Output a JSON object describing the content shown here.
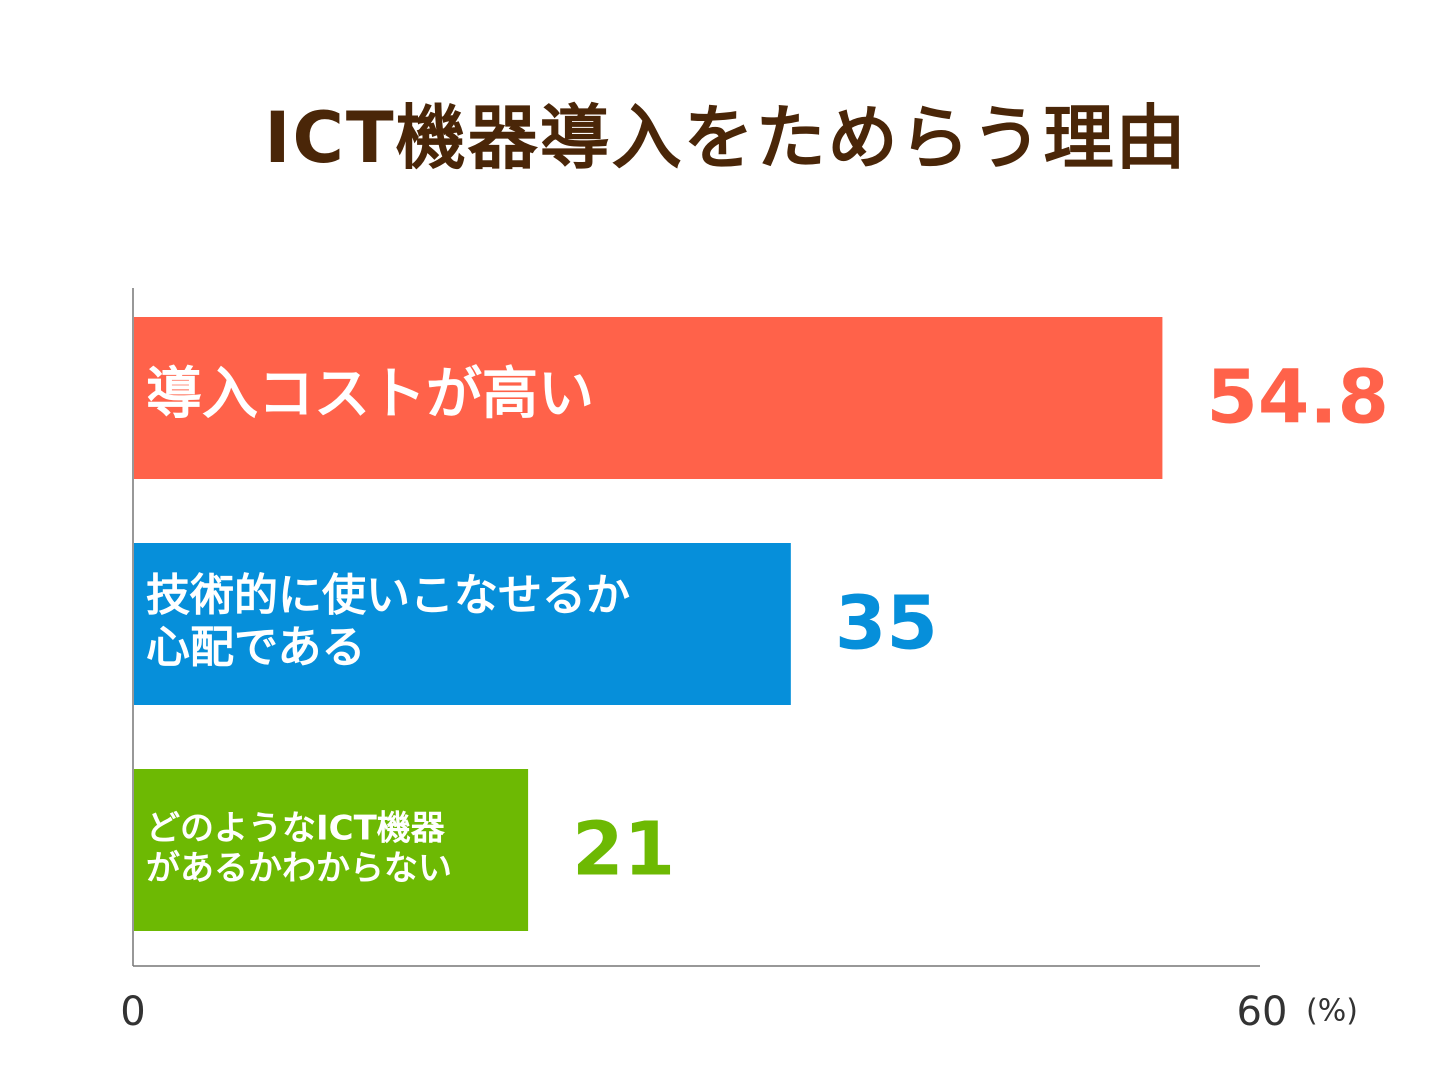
{
  "chart_data": {
    "type": "bar",
    "orientation": "horizontal",
    "title": "ICT機器導入をためらう理由",
    "categories": [
      [
        "導入コストが高い"
      ],
      [
        "技術的に使いこなせるか",
        "心配である"
      ],
      [
        "どのようなICT機器",
        "があるかわからない"
      ]
    ],
    "values": [
      54.8,
      35,
      21
    ],
    "value_labels": [
      "54.8",
      "35",
      "21"
    ],
    "colors": [
      "#ff624a",
      "#068fda",
      "#6db903"
    ],
    "xlim": [
      0,
      60
    ],
    "x_tick_labels": [
      "0",
      "60"
    ],
    "unit": "(%)",
    "grid": false,
    "legend": "none"
  }
}
